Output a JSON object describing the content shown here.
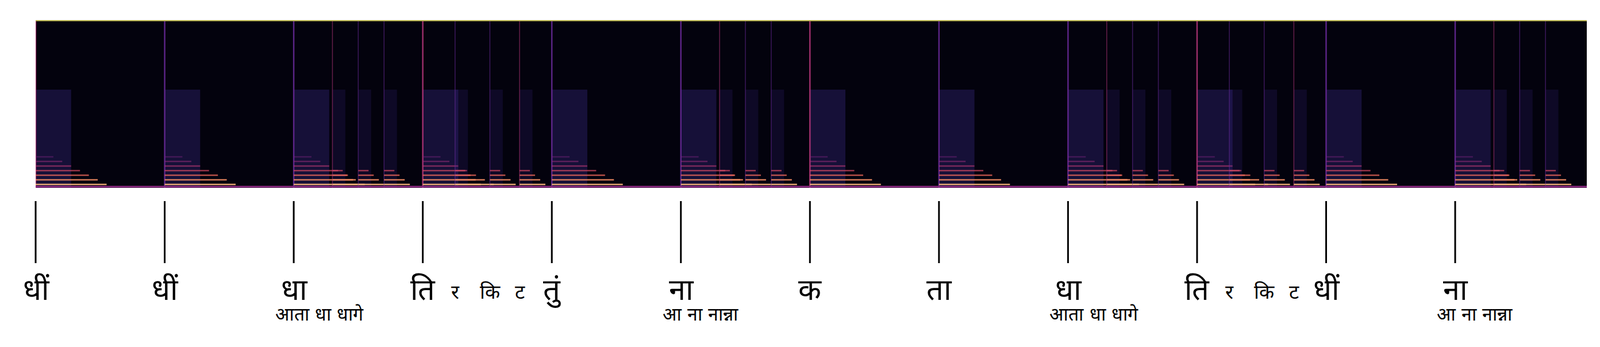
{
  "chart_data": {
    "type": "annotated_spectrogram",
    "categories": [
      "धीं",
      "धीं",
      "धा",
      "ति",
      "तुं",
      "ना",
      "क",
      "ता",
      "धा",
      "ति",
      "धीं",
      "ना"
    ],
    "sub_labels": [
      null,
      null,
      "आता धा धागे",
      null,
      null,
      "आ ना नान्ना",
      null,
      null,
      "आता धा धागे",
      null,
      null,
      "आ ना नान्ना"
    ],
    "subdivisions": [
      null,
      null,
      null,
      [
        "र",
        "कि",
        "ट"
      ],
      null,
      null,
      null,
      null,
      null,
      [
        "र",
        "कि",
        "ट"
      ],
      null,
      null
    ],
    "tick_labels": "x"
  }
}
